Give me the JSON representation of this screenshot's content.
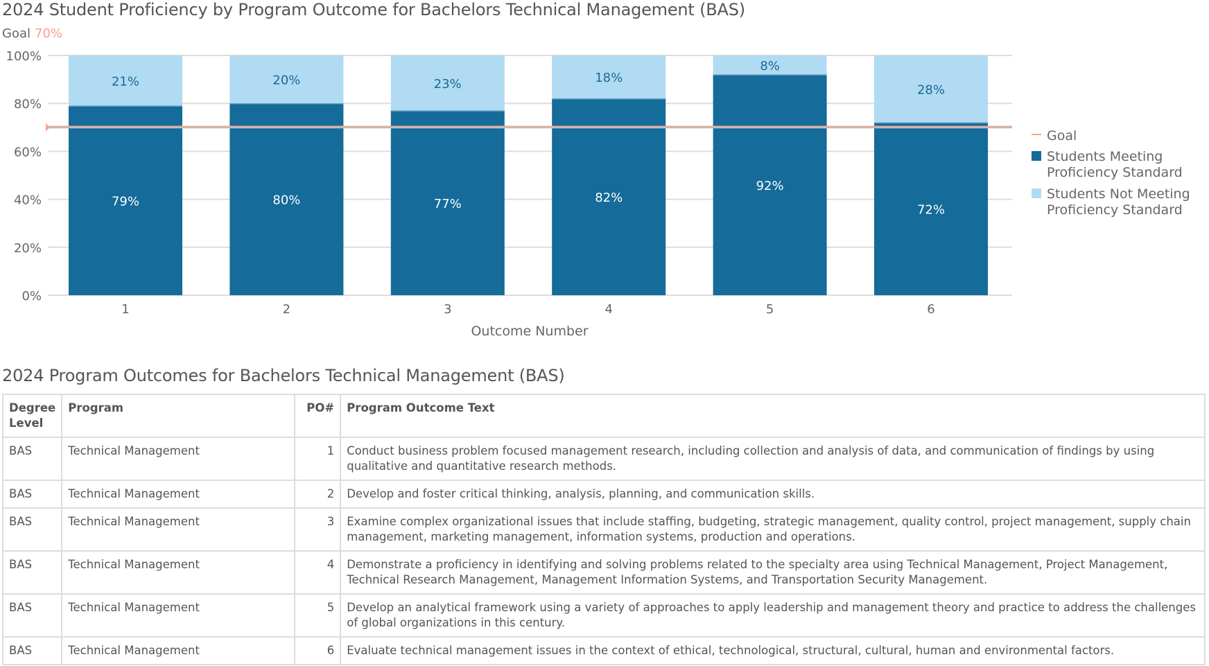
{
  "chart_data": {
    "type": "bar",
    "stacked": true,
    "title": "2024 Student Proficiency by Program Outcome for Bachelors Technical Management (BAS)",
    "goal_label": "Goal",
    "goal_value_text": "70%",
    "goal": 70,
    "xlabel": "Outcome Number",
    "ylabel": "",
    "ylim": [
      0,
      100
    ],
    "yticks": [
      "0%",
      "20%",
      "40%",
      "60%",
      "80%",
      "100%"
    ],
    "grid": true,
    "legend_position": "right",
    "categories": [
      "1",
      "2",
      "3",
      "4",
      "5",
      "6"
    ],
    "series": [
      {
        "name": "Students Meeting Proficiency Standard",
        "values": [
          79,
          80,
          77,
          82,
          92,
          72
        ],
        "labels": [
          "79%",
          "80%",
          "77%",
          "82%",
          "92%",
          "72%"
        ],
        "color": "#156b99"
      },
      {
        "name": "Students Not Meeting Proficiency Standard",
        "values": [
          21,
          20,
          23,
          18,
          8,
          28
        ],
        "labels": [
          "21%",
          "20%",
          "23%",
          "18%",
          "8%",
          "28%"
        ],
        "color": "#b0dbf2"
      }
    ],
    "legend": {
      "goal": "Goal",
      "meeting": [
        "Students Meeting",
        "Proficiency Standard"
      ],
      "not_meeting": [
        "Students Not Meeting",
        "Proficiency Standard"
      ]
    },
    "goal_color": "#f5a590"
  },
  "table": {
    "title": "2024 Program Outcomes for Bachelors Technical Management (BAS)",
    "headers": [
      "Degree Level",
      "Program",
      "PO#",
      "Program Outcome Text"
    ],
    "rows": [
      [
        "BAS",
        "Technical Management",
        "1",
        "Conduct business problem focused management research, including collection and analysis of data, and communication of findings by using qualitative and quantitative research methods."
      ],
      [
        "BAS",
        "Technical Management",
        "2",
        "Develop and foster critical thinking, analysis, planning, and communication skills."
      ],
      [
        "BAS",
        "Technical Management",
        "3",
        "Examine complex organizational issues that include staffing, budgeting, strategic management, quality control, project management, supply chain management, marketing management, information systems, production and operations."
      ],
      [
        "BAS",
        "Technical Management",
        "4",
        "Demonstrate a proficiency in identifying and solving problems related to the specialty area using Technical Management, Project Management, Technical Research Management, Management Information Systems, and Transportation Security Management."
      ],
      [
        "BAS",
        "Technical Management",
        "5",
        "Develop an analytical framework using a variety of approaches to apply leadership and management theory and practice to address the challenges of global organizations in this century."
      ],
      [
        "BAS",
        "Technical Management",
        "6",
        "Evaluate technical management issues in the context of ethical, technological, structural, cultural, human and environmental factors."
      ]
    ]
  }
}
